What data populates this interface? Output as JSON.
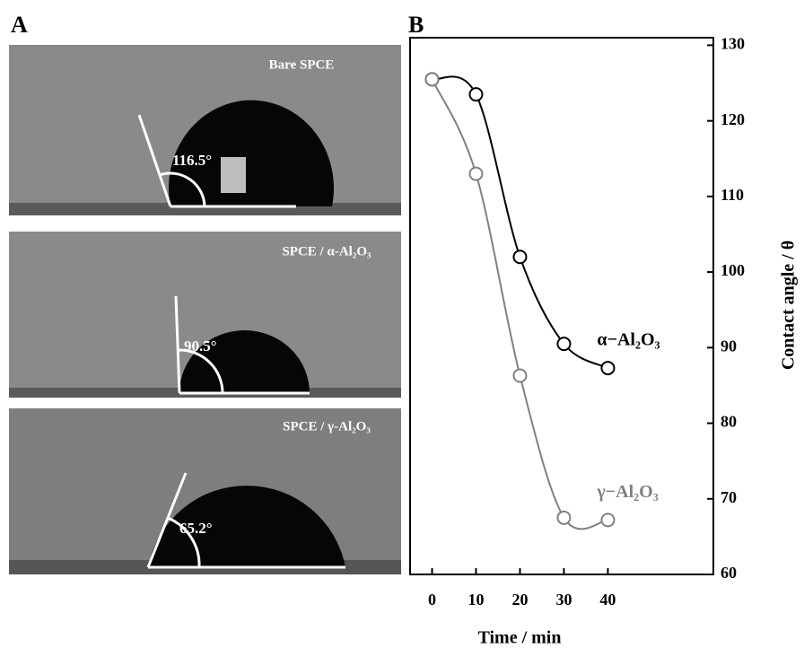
{
  "panel_a": {
    "label": "A",
    "images": [
      {
        "title": "Bare SPCE",
        "angle": "116.5°"
      },
      {
        "title": "SPCE / α-Al₂O₃",
        "angle": "90.5°"
      },
      {
        "title": "SPCE / γ-Al₂O₃",
        "angle": "65.2°"
      }
    ]
  },
  "chart_data": {
    "type": "line",
    "panel_label": "B",
    "x_label": "Time / min",
    "y_label": "Contact angle / θ",
    "x": [
      0,
      10,
      20,
      30,
      40
    ],
    "series": [
      {
        "name": "α−Al₂O₃",
        "color": "#000000",
        "values": [
          125.5,
          123.5,
          102,
          90.5,
          87.3
        ]
      },
      {
        "name": "γ−Al₂O₃",
        "color": "#808080",
        "values": [
          125.5,
          113,
          86.3,
          67.5,
          67.2
        ]
      }
    ],
    "xlim": [
      -5,
      64
    ],
    "ylim": [
      60,
      131
    ],
    "xticks": [
      0,
      10,
      20,
      30,
      40
    ],
    "yticks": [
      60,
      70,
      80,
      90,
      100,
      110,
      120,
      130
    ],
    "y_axis_side": "right"
  }
}
